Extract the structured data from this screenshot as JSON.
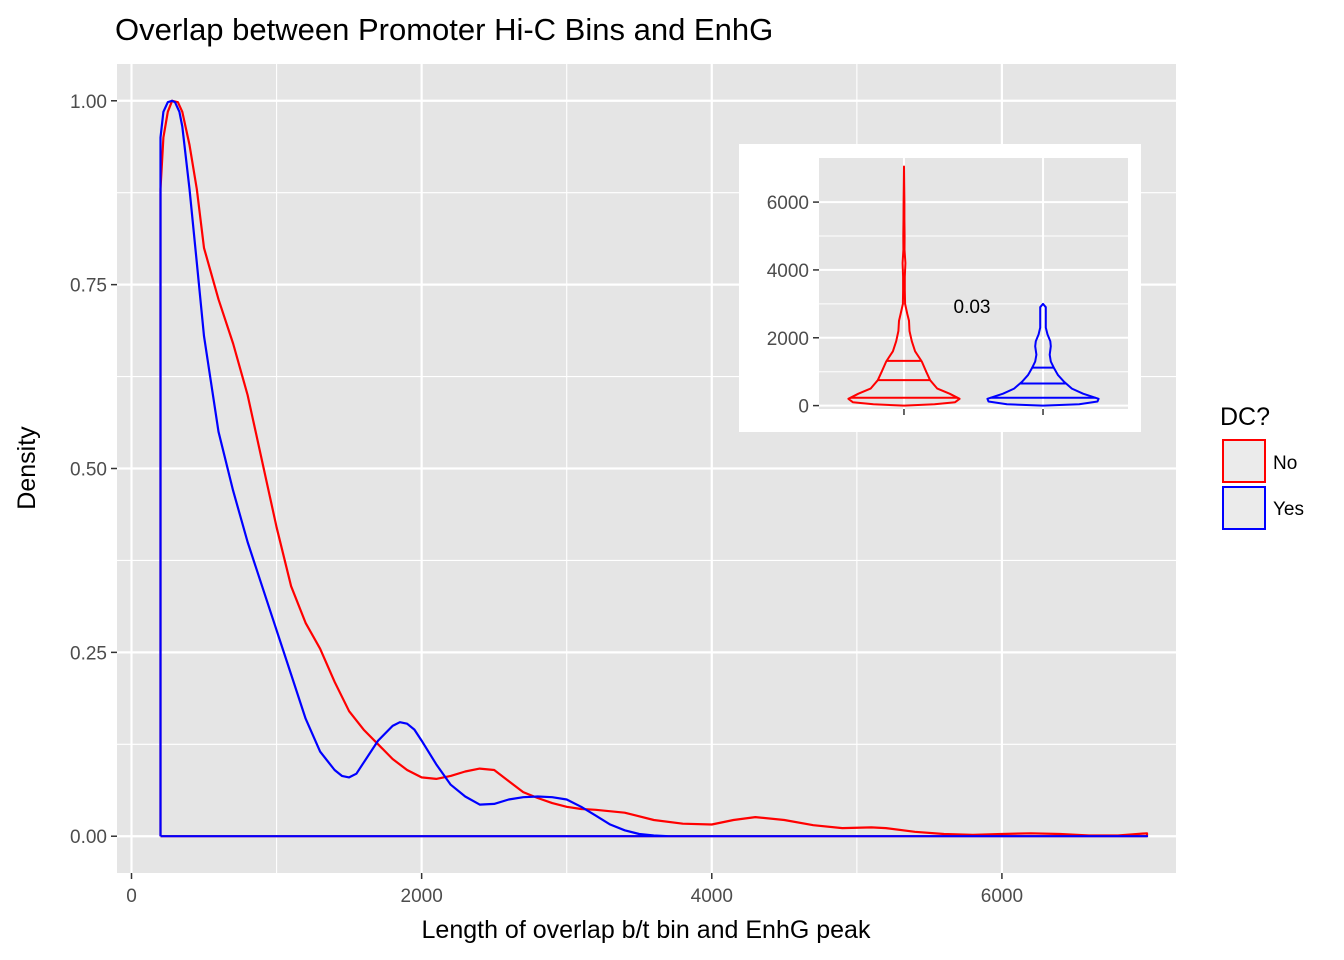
{
  "chart_data": [
    {
      "type": "line",
      "title": "Overlap between Promoter Hi-C Bins and EnhG",
      "xlabel": "Length of overlap b/t bin and EnhG peak",
      "ylabel": "Density",
      "xlim": [
        -100,
        7200
      ],
      "ylim": [
        -0.05,
        1.05
      ],
      "x_ticks": [
        0,
        2000,
        4000,
        6000
      ],
      "x_tick_labels": [
        "0",
        "2000",
        "4000",
        "6000"
      ],
      "y_ticks": [
        0,
        0.25,
        0.5,
        0.75,
        1
      ],
      "y_tick_labels": [
        "0.00",
        "0.25",
        "0.50",
        "0.75",
        "1.00"
      ],
      "grid": true,
      "legend": {
        "title": "DC?",
        "position": "right",
        "entries": [
          "No",
          "Yes"
        ]
      },
      "series": [
        {
          "name": "No",
          "color": "#ff0000",
          "x": [
            200,
            200,
            220,
            250,
            280,
            320,
            350,
            400,
            450,
            500,
            600,
            700,
            800,
            900,
            1000,
            1100,
            1200,
            1300,
            1400,
            1500,
            1600,
            1700,
            1800,
            1900,
            2000,
            2100,
            2200,
            2300,
            2400,
            2500,
            2600,
            2700,
            2800,
            2900,
            3000,
            3100,
            3200,
            3400,
            3600,
            3800,
            4000,
            4150,
            4300,
            4500,
            4700,
            4900,
            5100,
            5200,
            5400,
            5600,
            5800,
            6000,
            6200,
            6400,
            6600,
            6800,
            7000,
            7000,
            200
          ],
          "y": [
            0,
            0.88,
            0.95,
            0.985,
            1.0,
            0.998,
            0.985,
            0.94,
            0.88,
            0.8,
            0.73,
            0.67,
            0.6,
            0.51,
            0.42,
            0.34,
            0.29,
            0.255,
            0.21,
            0.17,
            0.145,
            0.125,
            0.105,
            0.09,
            0.08,
            0.078,
            0.082,
            0.088,
            0.092,
            0.09,
            0.075,
            0.06,
            0.052,
            0.045,
            0.04,
            0.037,
            0.036,
            0.032,
            0.022,
            0.017,
            0.016,
            0.022,
            0.026,
            0.022,
            0.015,
            0.011,
            0.012,
            0.011,
            0.006,
            0.003,
            0.002,
            0.003,
            0.004,
            0.003,
            0.001,
            0.001,
            0.004,
            0,
            0
          ]
        },
        {
          "name": "Yes",
          "color": "#0000ff",
          "x": [
            200,
            200,
            220,
            250,
            280,
            300,
            330,
            350,
            400,
            450,
            500,
            600,
            700,
            800,
            900,
            1000,
            1100,
            1200,
            1300,
            1400,
            1450,
            1500,
            1550,
            1600,
            1700,
            1800,
            1850,
            1900,
            1950,
            2000,
            2100,
            2200,
            2300,
            2400,
            2500,
            2600,
            2700,
            2800,
            2900,
            3000,
            3100,
            3200,
            3300,
            3400,
            3500,
            3600,
            3700,
            3800,
            4000,
            5000,
            6000,
            7000,
            7000,
            200
          ],
          "y": [
            0,
            0.95,
            0.985,
            0.998,
            1.0,
            0.998,
            0.985,
            0.965,
            0.88,
            0.78,
            0.68,
            0.55,
            0.47,
            0.4,
            0.34,
            0.28,
            0.22,
            0.16,
            0.115,
            0.09,
            0.082,
            0.08,
            0.085,
            0.1,
            0.13,
            0.15,
            0.155,
            0.153,
            0.145,
            0.13,
            0.098,
            0.07,
            0.054,
            0.043,
            0.044,
            0.05,
            0.053,
            0.054,
            0.053,
            0.05,
            0.04,
            0.028,
            0.016,
            0.008,
            0.003,
            0.001,
            0.0,
            0.0,
            0.0,
            0.0,
            0.0,
            0.0,
            0,
            0
          ]
        }
      ]
    },
    {
      "type": "violin",
      "position": "inset top-right",
      "annotation": "0.03",
      "ylim": [
        -100,
        7300
      ],
      "y_ticks": [
        0,
        2000,
        4000,
        6000
      ],
      "y_tick_labels": [
        "0",
        "2000",
        "4000",
        "6000"
      ],
      "grid": true,
      "groups": [
        {
          "name": "No",
          "color": "#ff0000",
          "y_min": 0,
          "y_max": 7050,
          "quantiles": [
            230,
            750,
            1320
          ],
          "profile": [
            [
              0,
              0.0
            ],
            [
              40,
              0.55
            ],
            [
              100,
              0.92
            ],
            [
              200,
              1.0
            ],
            [
              350,
              0.82
            ],
            [
              500,
              0.6
            ],
            [
              750,
              0.47
            ],
            [
              1000,
              0.4
            ],
            [
              1300,
              0.32
            ],
            [
              1600,
              0.2
            ],
            [
              1900,
              0.14
            ],
            [
              2200,
              0.1
            ],
            [
              2500,
              0.09
            ],
            [
              2700,
              0.06
            ],
            [
              3000,
              0.02
            ],
            [
              3400,
              0.015
            ],
            [
              3800,
              0.015
            ],
            [
              4200,
              0.025
            ],
            [
              4600,
              0.01
            ],
            [
              5000,
              0.012
            ],
            [
              5500,
              0.008
            ],
            [
              6000,
              0.007
            ],
            [
              6500,
              0.004
            ],
            [
              7050,
              0.0
            ]
          ]
        },
        {
          "name": "Yes",
          "color": "#0000ff",
          "y_min": 0,
          "y_max": 3000,
          "quantiles": [
            230,
            650,
            1120
          ],
          "profile": [
            [
              0,
              0.0
            ],
            [
              40,
              0.65
            ],
            [
              120,
              0.98
            ],
            [
              200,
              1.0
            ],
            [
              350,
              0.72
            ],
            [
              500,
              0.52
            ],
            [
              700,
              0.38
            ],
            [
              900,
              0.27
            ],
            [
              1100,
              0.2
            ],
            [
              1300,
              0.14
            ],
            [
              1500,
              0.12
            ],
            [
              1750,
              0.14
            ],
            [
              1900,
              0.13
            ],
            [
              2100,
              0.08
            ],
            [
              2300,
              0.05
            ],
            [
              2500,
              0.05
            ],
            [
              2700,
              0.05
            ],
            [
              2900,
              0.05
            ],
            [
              3000,
              0.0
            ]
          ]
        }
      ]
    }
  ]
}
